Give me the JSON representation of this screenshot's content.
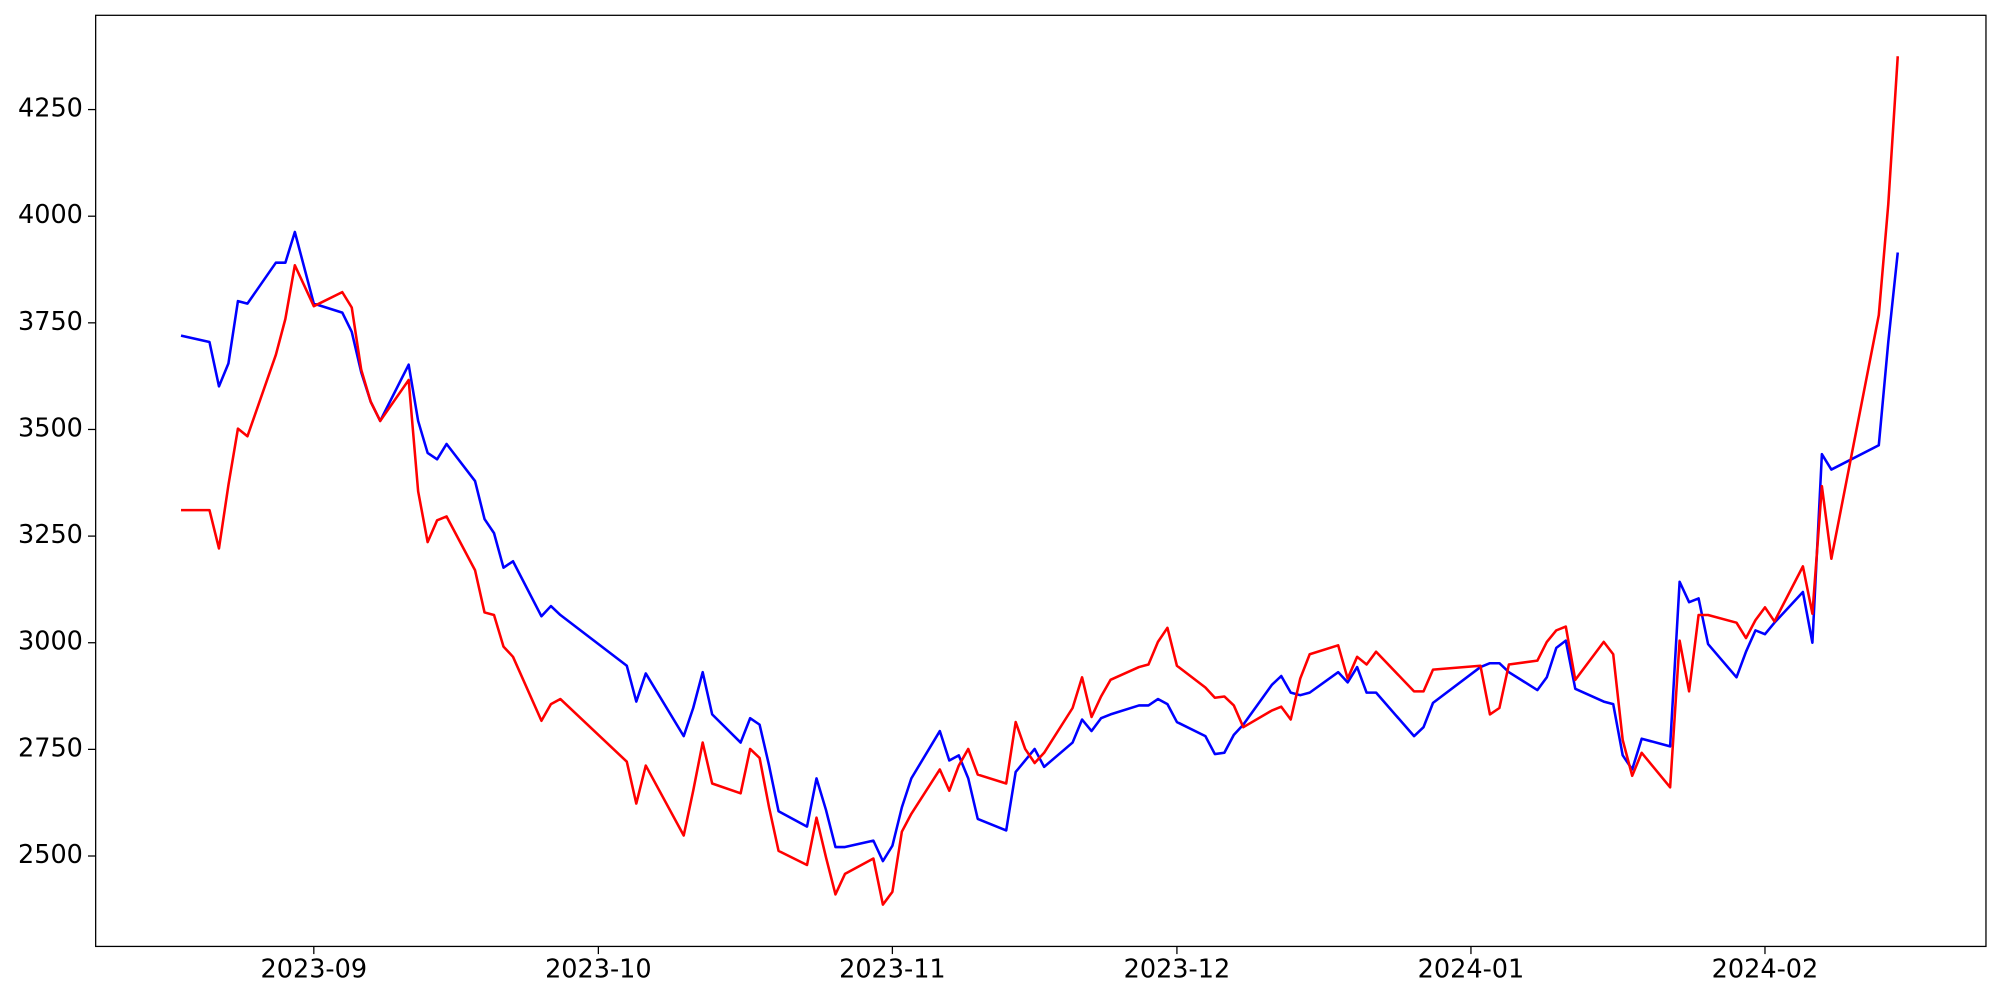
{
  "chart_data": {
    "type": "line",
    "x": [
      19587,
      19590,
      19591,
      19592,
      19593,
      19594,
      19597,
      19598,
      19599,
      19601,
      19604,
      19605,
      19606,
      19607,
      19608,
      19611,
      19612,
      19613,
      19614,
      19615,
      19618,
      19619,
      19620,
      19621,
      19622,
      19625,
      19626,
      19627,
      19634,
      19635,
      19636,
      19640,
      19641,
      19642,
      19643,
      19646,
      19647,
      19648,
      19649,
      19650,
      19653,
      19654,
      19655,
      19656,
      19657,
      19660,
      19661,
      19662,
      19663,
      19664,
      19667,
      19668,
      19669,
      19670,
      19671,
      19674,
      19675,
      19676,
      19677,
      19678,
      19681,
      19682,
      19683,
      19684,
      19685,
      19688,
      19689,
      19690,
      19691,
      19692,
      19695,
      19696,
      19697,
      19698,
      19699,
      19702,
      19703,
      19704,
      19705,
      19706,
      19709,
      19710,
      19711,
      19712,
      19713,
      19717,
      19718,
      19719,
      19724,
      19725,
      19726,
      19727,
      19730,
      19731,
      19732,
      19733,
      19734,
      19737,
      19738,
      19739,
      19740,
      19741,
      19744,
      19745,
      19746,
      19747,
      19748,
      19751,
      19752,
      19753,
      19754,
      19755,
      19758,
      19759,
      19760,
      19761,
      19766,
      19767,
      19768
    ],
    "series": [
      {
        "color": "#0000ff",
        "values": [
          3720,
          3705,
          3601,
          3655,
          3801,
          3795,
          3891,
          3891,
          3963,
          3795,
          3774,
          3729,
          3634,
          3565,
          3520,
          3652,
          3520,
          3445,
          3430,
          3466,
          3379,
          3290,
          3257,
          3176,
          3191,
          3062,
          3086,
          3065,
          2946,
          2862,
          2928,
          2781,
          2847,
          2931,
          2832,
          2766,
          2823,
          2808,
          2712,
          2605,
          2569,
          2682,
          2608,
          2521,
          2521,
          2536,
          2488,
          2524,
          2614,
          2682,
          2793,
          2724,
          2736,
          2682,
          2587,
          2560,
          2697,
          2724,
          2751,
          2709,
          2766,
          2820,
          2793,
          2823,
          2832,
          2853,
          2853,
          2868,
          2856,
          2814,
          2781,
          2739,
          2742,
          2784,
          2808,
          2901,
          2922,
          2883,
          2877,
          2883,
          2931,
          2907,
          2943,
          2883,
          2883,
          2781,
          2802,
          2859,
          2943,
          2952,
          2952,
          2931,
          2889,
          2919,
          2988,
          3005,
          2892,
          2862,
          2856,
          2736,
          2703,
          2775,
          2757,
          3143,
          3095,
          3104,
          2997,
          2919,
          2979,
          3029,
          3020,
          3047,
          3119,
          3000,
          3442,
          3406,
          3463,
          3705,
          3915
        ]
      },
      {
        "color": "#ff0000",
        "values": [
          3311,
          3311,
          3221,
          3370,
          3502,
          3484,
          3675,
          3759,
          3885,
          3789,
          3822,
          3786,
          3640,
          3565,
          3520,
          3616,
          3355,
          3236,
          3287,
          3296,
          3170,
          3071,
          3065,
          2991,
          2967,
          2817,
          2856,
          2868,
          2721,
          2623,
          2712,
          2548,
          2653,
          2766,
          2670,
          2647,
          2751,
          2730,
          2614,
          2512,
          2479,
          2590,
          2497,
          2410,
          2458,
          2494,
          2386,
          2416,
          2557,
          2599,
          2703,
          2653,
          2712,
          2751,
          2691,
          2670,
          2814,
          2751,
          2718,
          2742,
          2847,
          2919,
          2826,
          2874,
          2913,
          2943,
          2949,
          3002,
          3035,
          2946,
          2895,
          2871,
          2874,
          2853,
          2802,
          2841,
          2850,
          2820,
          2916,
          2973,
          2994,
          2916,
          2967,
          2949,
          2979,
          2886,
          2886,
          2937,
          2946,
          2832,
          2847,
          2949,
          2958,
          3002,
          3029,
          3038,
          2913,
          3002,
          2973,
          2772,
          2688,
          2742,
          2661,
          3005,
          2886,
          3065,
          3065,
          3047,
          3011,
          3053,
          3083,
          3050,
          3179,
          3068,
          3367,
          3197,
          3768,
          4028,
          4375
        ]
      }
    ],
    "xlim": [
      19578,
      19777.3
    ],
    "xticks": [
      {
        "value": 19601,
        "label": "2023-09"
      },
      {
        "value": 19631,
        "label": "2023-10"
      },
      {
        "value": 19662,
        "label": "2023-11"
      },
      {
        "value": 19692,
        "label": "2023-12"
      },
      {
        "value": 19723,
        "label": "2024-01"
      },
      {
        "value": 19754,
        "label": "2024-02"
      }
    ],
    "ylim": [
      2288,
      4471
    ],
    "yticks": [
      2500,
      2750,
      3000,
      3250,
      3500,
      3750,
      4000,
      4250
    ],
    "grid": false
  }
}
